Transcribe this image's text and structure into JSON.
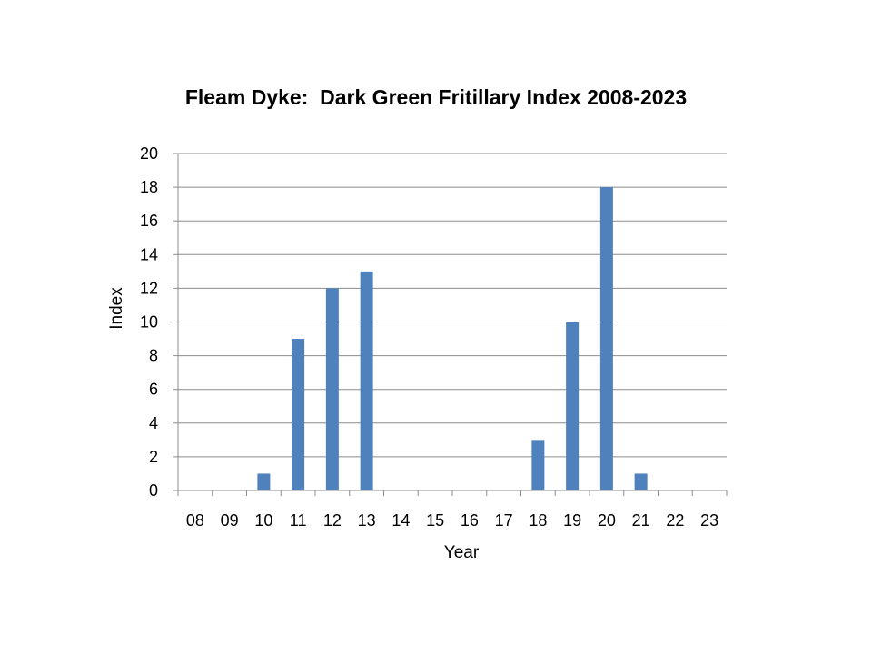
{
  "chart_data": {
    "type": "bar",
    "title": "Fleam Dyke:  Dark Green Fritillary Index 2008-2023",
    "xlabel": "Year",
    "ylabel": "Index",
    "categories": [
      "08",
      "09",
      "10",
      "11",
      "12",
      "13",
      "14",
      "15",
      "16",
      "17",
      "18",
      "19",
      "20",
      "21",
      "22",
      "23"
    ],
    "values": [
      0,
      0,
      1,
      9,
      12,
      13,
      0,
      0,
      0,
      0,
      3,
      10,
      18,
      1,
      0,
      0
    ],
    "ylim": [
      0,
      20
    ],
    "yticks": [
      0,
      2,
      4,
      6,
      8,
      10,
      12,
      14,
      16,
      18,
      20
    ],
    "grid": true,
    "legend": "none",
    "bar_color": "#4F81BD",
    "grid_color": "#8C8C8C"
  }
}
